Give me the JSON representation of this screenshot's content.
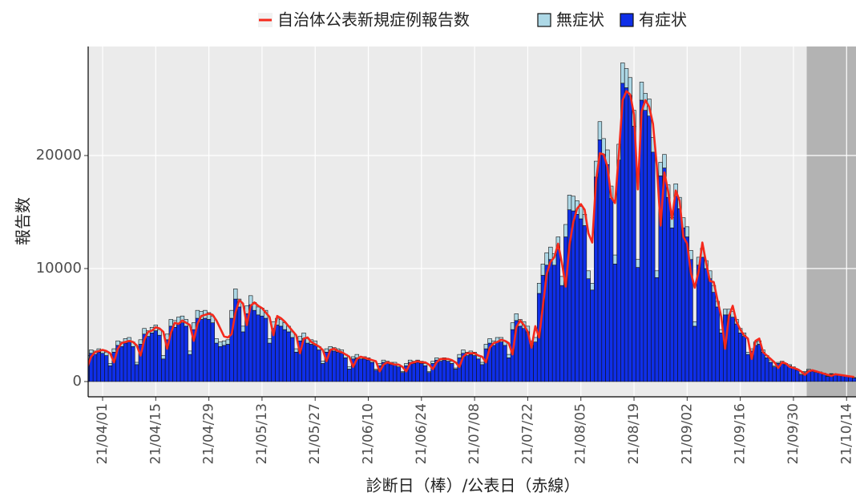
{
  "chart_data": {
    "type": "bar",
    "x_label": "診断日（棒）/公表日（赤線）",
    "y_label": "報告数",
    "x": [
      "21/03/28",
      "21/03/29",
      "21/03/30",
      "21/03/31",
      "21/04/01",
      "21/04/02",
      "21/04/03",
      "21/04/04",
      "21/04/05",
      "21/04/06",
      "21/04/07",
      "21/04/08",
      "21/04/09",
      "21/04/10",
      "21/04/11",
      "21/04/12",
      "21/04/13",
      "21/04/14",
      "21/04/15",
      "21/04/16",
      "21/04/17",
      "21/04/18",
      "21/04/19",
      "21/04/20",
      "21/04/21",
      "21/04/22",
      "21/04/23",
      "21/04/24",
      "21/04/25",
      "21/04/26",
      "21/04/27",
      "21/04/28",
      "21/04/29",
      "21/04/30",
      "21/05/01",
      "21/05/02",
      "21/05/03",
      "21/05/04",
      "21/05/05",
      "21/05/06",
      "21/05/07",
      "21/05/08",
      "21/05/09",
      "21/05/10",
      "21/05/11",
      "21/05/12",
      "21/05/13",
      "21/05/14",
      "21/05/15",
      "21/05/16",
      "21/05/17",
      "21/05/18",
      "21/05/19",
      "21/05/20",
      "21/05/21",
      "21/05/22",
      "21/05/23",
      "21/05/24",
      "21/05/25",
      "21/05/26",
      "21/05/27",
      "21/05/28",
      "21/05/29",
      "21/05/30",
      "21/05/31",
      "21/06/01",
      "21/06/02",
      "21/06/03",
      "21/06/04",
      "21/06/05",
      "21/06/06",
      "21/06/07",
      "21/06/08",
      "21/06/09",
      "21/06/10",
      "21/06/11",
      "21/06/12",
      "21/06/13",
      "21/06/14",
      "21/06/15",
      "21/06/16",
      "21/06/17",
      "21/06/18",
      "21/06/19",
      "21/06/20",
      "21/06/21",
      "21/06/22",
      "21/06/23",
      "21/06/24",
      "21/06/25",
      "21/06/26",
      "21/06/27",
      "21/06/28",
      "21/06/29",
      "21/06/30",
      "21/07/01",
      "21/07/02",
      "21/07/03",
      "21/07/04",
      "21/07/05",
      "21/07/06",
      "21/07/07",
      "21/07/08",
      "21/07/09",
      "21/07/10",
      "21/07/11",
      "21/07/12",
      "21/07/13",
      "21/07/14",
      "21/07/15",
      "21/07/16",
      "21/07/17",
      "21/07/18",
      "21/07/19",
      "21/07/20",
      "21/07/21",
      "21/07/22",
      "21/07/23",
      "21/07/24",
      "21/07/25",
      "21/07/26",
      "21/07/27",
      "21/07/28",
      "21/07/29",
      "21/07/30",
      "21/07/31",
      "21/08/01",
      "21/08/02",
      "21/08/03",
      "21/08/04",
      "21/08/05",
      "21/08/06",
      "21/08/07",
      "21/08/08",
      "21/08/09",
      "21/08/10",
      "21/08/11",
      "21/08/12",
      "21/08/13",
      "21/08/14",
      "21/08/15",
      "21/08/16",
      "21/08/17",
      "21/08/18",
      "21/08/19",
      "21/08/20",
      "21/08/21",
      "21/08/22",
      "21/08/23",
      "21/08/24",
      "21/08/25",
      "21/08/26",
      "21/08/27",
      "21/08/28",
      "21/08/29",
      "21/08/30",
      "21/08/31",
      "21/09/01",
      "21/09/02",
      "21/09/03",
      "21/09/04",
      "21/09/05",
      "21/09/06",
      "21/09/07",
      "21/09/08",
      "21/09/09",
      "21/09/10",
      "21/09/11",
      "21/09/12",
      "21/09/13",
      "21/09/14",
      "21/09/15",
      "21/09/16",
      "21/09/17",
      "21/09/18",
      "21/09/19",
      "21/09/20",
      "21/09/21",
      "21/09/22",
      "21/09/23",
      "21/09/24",
      "21/09/25",
      "21/09/26",
      "21/09/27",
      "21/09/28",
      "21/09/29",
      "21/09/30",
      "21/10/01",
      "21/10/02",
      "21/10/03",
      "21/10/04",
      "21/10/05",
      "21/10/06",
      "21/10/07",
      "21/10/08",
      "21/10/09",
      "21/10/10",
      "21/10/11",
      "21/10/12",
      "21/10/13",
      "21/10/14",
      "21/10/15",
      "21/10/16"
    ],
    "series": [
      {
        "name": "自治体公表新規症例報告数",
        "type": "line",
        "color": "#f5291c",
        "values": [
          1300,
          2200,
          2600,
          2700,
          2800,
          2700,
          2500,
          1700,
          2900,
          3400,
          3500,
          3600,
          3500,
          3200,
          2300,
          3700,
          4400,
          4500,
          4800,
          4700,
          4400,
          2900,
          4300,
          5200,
          5100,
          5400,
          5200,
          5000,
          3600,
          5100,
          5800,
          5900,
          6000,
          5900,
          5400,
          4700,
          4000,
          3900,
          4200,
          6100,
          7200,
          6900,
          5000,
          6700,
          7000,
          6700,
          6500,
          6100,
          5700,
          4100,
          5800,
          5600,
          5300,
          4900,
          4500,
          4100,
          2500,
          3800,
          3900,
          3500,
          3300,
          3100,
          2800,
          1800,
          2800,
          2900,
          2700,
          2600,
          2400,
          2200,
          1300,
          2000,
          2200,
          2100,
          2000,
          1900,
          1800,
          900,
          1500,
          1700,
          1600,
          1500,
          1500,
          1300,
          900,
          1600,
          1700,
          1800,
          1700,
          1700,
          1500,
          1100,
          1700,
          2000,
          2000,
          2000,
          1900,
          1700,
          1300,
          2200,
          2500,
          2500,
          2500,
          2300,
          2200,
          1700,
          3000,
          3400,
          3500,
          3700,
          3600,
          3400,
          2400,
          4800,
          5400,
          5000,
          4400,
          3000,
          4900,
          3900,
          6700,
          9500,
          10600,
          11000,
          12200,
          10500,
          8400,
          12100,
          14100,
          15300,
          15700,
          15200,
          13100,
          12300,
          17800,
          20200,
          20100,
          19000,
          16300,
          15800,
          20100,
          24900,
          25700,
          25400,
          23600,
          17000,
          23900,
          24900,
          24300,
          22800,
          19100,
          13800,
          18500,
          16800,
          14400,
          16900,
          16000,
          12800,
          12200,
          9600,
          8300,
          9700,
          12300,
          10500,
          8900,
          8800,
          7200,
          5700,
          2900,
          5800,
          6700,
          5300,
          4600,
          4100,
          3800,
          2000,
          3600,
          3800,
          2600,
          2300,
          2000,
          1700,
          1200,
          1700,
          1600,
          1300,
          1200,
          1100,
          900,
          600,
          900,
          1000,
          900,
          800,
          700,
          600,
          500,
          650,
          600,
          550,
          500,
          450,
          400
        ]
      },
      {
        "name": "無症状",
        "type": "bar",
        "color": "#add8e6",
        "values": [
          300,
          300,
          300,
          300,
          300,
          300,
          200,
          300,
          400,
          400,
          400,
          400,
          400,
          200,
          400,
          500,
          500,
          500,
          500,
          500,
          300,
          500,
          600,
          600,
          600,
          600,
          600,
          300,
          600,
          700,
          700,
          700,
          600,
          600,
          400,
          400,
          400,
          400,
          700,
          900,
          700,
          500,
          700,
          800,
          700,
          700,
          700,
          700,
          400,
          600,
          600,
          600,
          600,
          500,
          500,
          300,
          400,
          500,
          400,
          400,
          400,
          300,
          200,
          300,
          300,
          300,
          300,
          300,
          300,
          200,
          200,
          300,
          200,
          200,
          200,
          200,
          100,
          200,
          200,
          200,
          200,
          200,
          200,
          100,
          200,
          200,
          200,
          200,
          200,
          200,
          100,
          200,
          200,
          200,
          200,
          200,
          200,
          100,
          300,
          300,
          300,
          300,
          300,
          300,
          200,
          400,
          400,
          400,
          400,
          400,
          400,
          300,
          600,
          600,
          600,
          600,
          500,
          400,
          400,
          900,
          1000,
          1100,
          1100,
          1000,
          1100,
          800,
          1100,
          1300,
          1300,
          1200,
          1100,
          1000,
          700,
          600,
          1400,
          1600,
          1400,
          1300,
          1100,
          800,
          1400,
          1800,
          1700,
          1600,
          1400,
          700,
          1600,
          1500,
          1500,
          1300,
          600,
          1200,
          1200,
          1100,
          900,
          1100,
          1000,
          900,
          900,
          800,
          400,
          700,
          800,
          700,
          700,
          600,
          500,
          300,
          500,
          500,
          500,
          400,
          400,
          300,
          200,
          200,
          300,
          300,
          200,
          200,
          200,
          100,
          100,
          200,
          100,
          100,
          100,
          100,
          100,
          100,
          100,
          100,
          100,
          100,
          100,
          50,
          50,
          50,
          50,
          50,
          50,
          50,
          50
        ]
      },
      {
        "name": "有症状",
        "type": "bar",
        "color": "#0f2fe8",
        "values": [
          2000,
          2500,
          2400,
          2600,
          2500,
          2300,
          1400,
          2600,
          3200,
          3100,
          3400,
          3500,
          3100,
          1500,
          3300,
          4200,
          4000,
          4300,
          4500,
          4100,
          2000,
          3700,
          4900,
          4800,
          5100,
          5200,
          4900,
          2400,
          4600,
          5600,
          5500,
          5600,
          5500,
          5200,
          3400,
          3100,
          3200,
          3300,
          5600,
          7300,
          6600,
          4400,
          6000,
          6800,
          6300,
          5900,
          5800,
          5600,
          3400,
          4700,
          5000,
          4900,
          4600,
          4400,
          3900,
          2600,
          3600,
          3800,
          3400,
          3300,
          3200,
          2800,
          1600,
          2600,
          2800,
          2700,
          2600,
          2500,
          2100,
          1100,
          2000,
          2100,
          2000,
          2000,
          1900,
          1700,
          1000,
          1400,
          1700,
          1600,
          1500,
          1500,
          1300,
          800,
          1400,
          1700,
          1600,
          1700,
          1600,
          1400,
          800,
          1600,
          1900,
          1800,
          1900,
          1800,
          1600,
          1100,
          2100,
          2500,
          2300,
          2400,
          2300,
          2000,
          1500,
          2900,
          3400,
          3200,
          3500,
          3500,
          3200,
          2100,
          4600,
          5400,
          4900,
          4700,
          4400,
          3200,
          3500,
          7800,
          9400,
          10300,
          10800,
          10300,
          11700,
          8500,
          12800,
          15200,
          15100,
          14800,
          14400,
          13800,
          9100,
          8100,
          18100,
          21400,
          20100,
          19200,
          16200,
          10400,
          19600,
          26400,
          26000,
          25300,
          22600,
          10100,
          24900,
          24000,
          23500,
          20300,
          9200,
          18200,
          18900,
          16300,
          13600,
          16400,
          15300,
          13600,
          12800,
          10800,
          4900,
          10300,
          11000,
          10000,
          9100,
          7900,
          6600,
          4300,
          5900,
          5900,
          5700,
          5100,
          4300,
          4000,
          2400,
          2700,
          3200,
          3300,
          2600,
          2100,
          1700,
          1300,
          1600,
          1600,
          1500,
          1400,
          1200,
          1000,
          600,
          800,
          1000,
          900,
          800,
          750,
          650,
          450,
          650,
          600,
          550,
          500,
          450,
          400,
          300
        ]
      }
    ],
    "xticks": [
      "21/04/01",
      "21/04/15",
      "21/04/29",
      "21/05/13",
      "21/05/27",
      "21/06/10",
      "21/06/24",
      "21/07/08",
      "21/07/22",
      "21/08/05",
      "21/08/19",
      "21/09/02",
      "21/09/16",
      "21/09/30",
      "21/10/14"
    ],
    "ylim": [
      -1350,
      29650
    ],
    "yticks": [
      0,
      10000,
      20000
    ],
    "grid": true,
    "shaded_from": "21/10/04",
    "legend": "top"
  }
}
